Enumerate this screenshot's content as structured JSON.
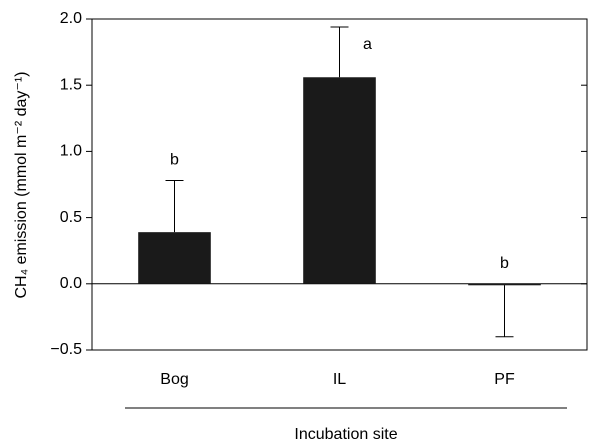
{
  "chart_data": {
    "type": "bar",
    "y_label": "CH₄ emission (mmol m⁻² day⁻¹)",
    "x_label": "Incubation site",
    "categories": [
      "Bog",
      "IL",
      "PF"
    ],
    "values": [
      0.39,
      1.56,
      -0.01
    ],
    "errors": [
      0.39,
      0.38,
      0.39
    ],
    "annotations": [
      "b",
      "a",
      "b"
    ],
    "color": "#1a1a1a",
    "ylim": [
      -0.5,
      2.0
    ],
    "yticks": [
      {
        "value": -0.5,
        "label": "−0.5"
      },
      {
        "value": 0,
        "label": "0.0"
      },
      {
        "value": 0.5,
        "label": "0.5"
      },
      {
        "value": 1,
        "label": "1.0"
      },
      {
        "value": 1.5,
        "label": "1.5"
      },
      {
        "value": 2,
        "label": "2.0"
      }
    ]
  }
}
